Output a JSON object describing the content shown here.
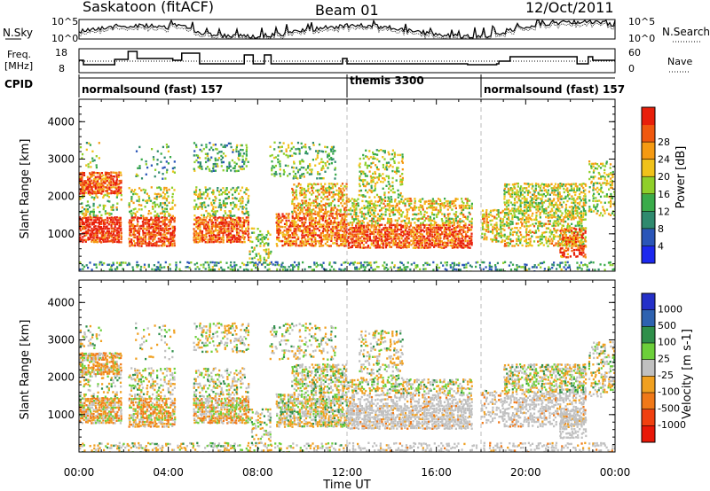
{
  "header": {
    "radar": "Saskatoon (fitACF)",
    "beam": "Beam 01",
    "date": "12/Oct/2011"
  },
  "noise_panel": {
    "left_label": "N.Sky",
    "right_label": "N.Search",
    "left_ticks": [
      "10^5",
      "10^0"
    ],
    "right_ticks": [
      "10^5",
      "10^0"
    ]
  },
  "freq_panel": {
    "left_label_1": "Freq.",
    "left_label_2": "[MHz]",
    "right_label": "Nave",
    "left_ticks": [
      "18",
      "8"
    ],
    "right_ticks": [
      "60",
      "0"
    ]
  },
  "cpid": {
    "label": "CPID",
    "segments": [
      {
        "name": "normalsound (fast) 157",
        "start_hour": 0
      },
      {
        "name": "themis 3300",
        "start_hour": 12
      },
      {
        "name": "normalsound (fast) 157",
        "start_hour": 18
      }
    ]
  },
  "chart_data": [
    {
      "type": "heatmap",
      "quantity": "Power",
      "ylabel": "Slant Range [km]",
      "xlabel": "Time UT",
      "yticks": [
        "1000",
        "2000",
        "3000",
        "4000"
      ],
      "ylim": [
        0,
        4600
      ],
      "xlim_hours": [
        0,
        24
      ],
      "colorbar": {
        "label": "Power [dB]",
        "ticks": [
          "4",
          "8",
          "12",
          "16",
          "20",
          "24",
          "28"
        ],
        "colors": [
          "#1c28ee",
          "#2a55b8",
          "#2f8a6e",
          "#3aab4a",
          "#8fcf2a",
          "#f0c21a",
          "#f59a12",
          "#f0580e",
          "#e81f0a"
        ]
      }
    },
    {
      "type": "heatmap",
      "quantity": "Velocity",
      "ylabel": "Slant Range [km]",
      "xlabel": "Time UT",
      "yticks": [
        "1000",
        "2000",
        "3000",
        "4000"
      ],
      "ylim": [
        0,
        4600
      ],
      "xlim_hours": [
        0,
        24
      ],
      "colorbar": {
        "label": "Velocity [m s-1]",
        "ticks": [
          "1000",
          "500",
          "100",
          "25",
          "-25",
          "-100",
          "-500",
          "-1000"
        ],
        "colors": [
          "#2430c8",
          "#2e62b0",
          "#2f8f4a",
          "#6ccf3a",
          "#c0c0c0",
          "#f0a020",
          "#f07818",
          "#f04010",
          "#e81808"
        ]
      }
    }
  ],
  "x_axis": {
    "ticks": [
      "00:00",
      "04:00",
      "08:00",
      "12:00",
      "16:00",
      "20:00",
      "00:00"
    ],
    "label": "Time UT"
  }
}
